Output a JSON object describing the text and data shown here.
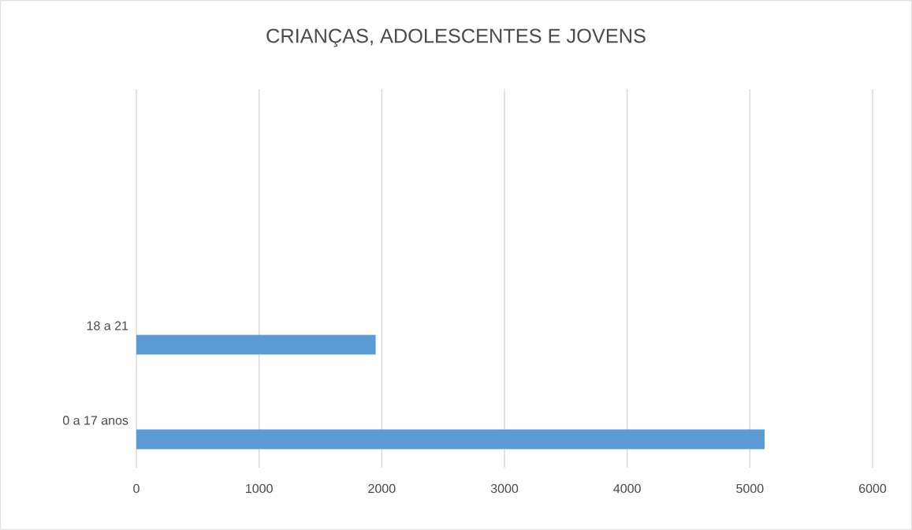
{
  "chart_data": {
    "type": "bar",
    "orientation": "horizontal",
    "title": "CRIANÇAS, ADOLESCENTES E JOVENS",
    "categories": [
      null,
      null,
      "18 a 21",
      "0 a 17 anos"
    ],
    "values": [
      null,
      null,
      1950,
      5120
    ],
    "color": "#5b9bd5",
    "xlim": [
      0,
      6000
    ],
    "xticks": [
      0,
      1000,
      2000,
      3000,
      4000,
      5000,
      6000
    ],
    "grid": "x"
  }
}
